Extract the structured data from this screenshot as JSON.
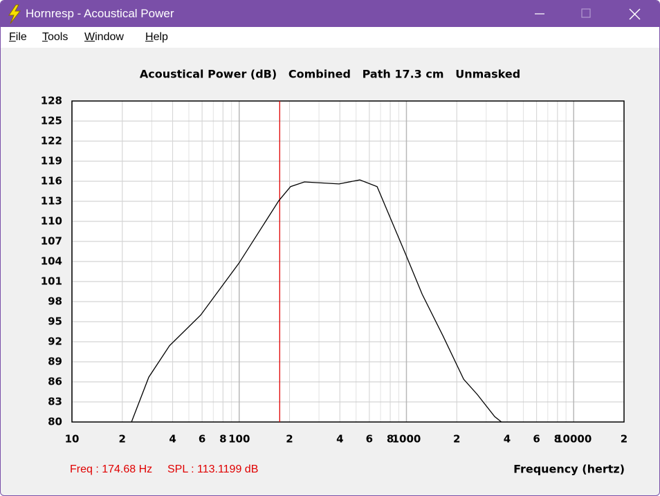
{
  "window_title": "Hornresp - Acoustical Power",
  "menu": [
    "File",
    "Tools",
    "Window",
    "Help"
  ],
  "chart_data": {
    "type": "line",
    "title": "Acoustical Power (dB)   Combined   Path 17.3 cm   Unmasked",
    "x_label": "Frequency (hertz)",
    "x": [
      22.7,
      28.8,
      38.3,
      58.9,
      100,
      172.6,
      202.9,
      245.5,
      395.4,
      526,
      667.7,
      1000,
      1242,
      1652,
      2198,
      2655,
      3371,
      3700
    ],
    "values": [
      80,
      86.7,
      91.4,
      96.0,
      103.8,
      113.1,
      115.2,
      115.9,
      115.6,
      116.2,
      115.2,
      104.8,
      99.1,
      92.9,
      86.4,
      84.1,
      80.8,
      80
    ],
    "color": "#000000",
    "x_log": true,
    "grid": true,
    "xlim": [
      10,
      20000
    ],
    "ylim": [
      80,
      128
    ],
    "xticks": [
      10,
      {
        "value": 20,
        "label": "2"
      },
      {
        "value": 40,
        "label": "4"
      },
      {
        "value": 60,
        "label": "6"
      },
      {
        "value": 80,
        "label": "8"
      },
      100,
      {
        "value": 200,
        "label": "2"
      },
      {
        "value": 400,
        "label": "4"
      },
      {
        "value": 600,
        "label": "6"
      },
      {
        "value": 800,
        "label": "8"
      },
      1000,
      {
        "value": 2000,
        "label": "2"
      },
      {
        "value": 4000,
        "label": "4"
      },
      {
        "value": 6000,
        "label": "6"
      },
      {
        "value": 8000,
        "label": "8"
      },
      10000,
      {
        "value": 20000,
        "label": "2"
      }
    ],
    "yticks": [
      80,
      83,
      86,
      89,
      92,
      95,
      98,
      101,
      104,
      107,
      110,
      113,
      116,
      119,
      122,
      125,
      128
    ],
    "marker": {
      "value": 174.68,
      "color": "#e00000"
    },
    "annotations": [
      "Freq : 174.68 Hz",
      "SPL : 113.1199 dB"
    ]
  }
}
